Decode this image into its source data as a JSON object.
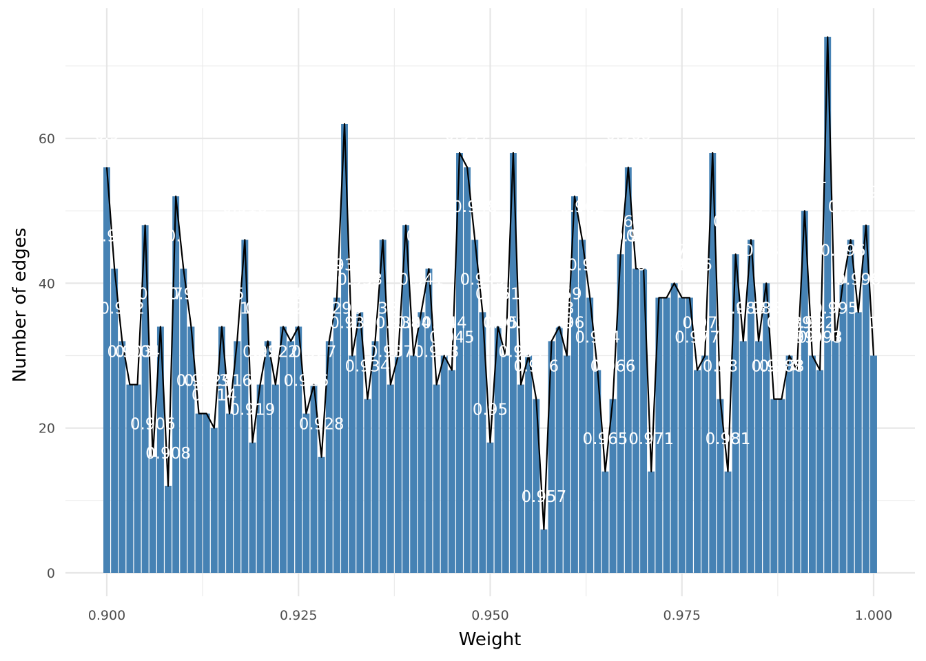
{
  "chart_data": {
    "type": "bar",
    "overlay": "line",
    "xlabel": "Weight",
    "ylabel": "Number of edges",
    "xlim": [
      0.9,
      1.0
    ],
    "ylim": [
      0,
      74
    ],
    "x_ticks": [
      "0.900",
      "0.925",
      "0.950",
      "0.975",
      "1.000"
    ],
    "y_ticks": [
      "0",
      "20",
      "40",
      "60"
    ],
    "grid": true,
    "bar_color": "#4682b4",
    "line_color": "#000000",
    "label_color": "#ffffff",
    "x": [
      0.9,
      0.901,
      0.902,
      0.903,
      0.904,
      0.905,
      0.906,
      0.907,
      0.908,
      0.909,
      0.91,
      0.911,
      0.912,
      0.913,
      0.914,
      0.915,
      0.916,
      0.917,
      0.918,
      0.919,
      0.92,
      0.921,
      0.922,
      0.923,
      0.924,
      0.925,
      0.926,
      0.927,
      0.928,
      0.929,
      0.93,
      0.931,
      0.932,
      0.933,
      0.934,
      0.935,
      0.936,
      0.937,
      0.938,
      0.939,
      0.94,
      0.941,
      0.942,
      0.943,
      0.944,
      0.945,
      0.946,
      0.947,
      0.948,
      0.949,
      0.95,
      0.951,
      0.952,
      0.953,
      0.954,
      0.955,
      0.956,
      0.957,
      0.958,
      0.959,
      0.96,
      0.961,
      0.962,
      0.963,
      0.964,
      0.965,
      0.966,
      0.967,
      0.968,
      0.969,
      0.97,
      0.971,
      0.972,
      0.973,
      0.974,
      0.975,
      0.976,
      0.977,
      0.978,
      0.979,
      0.98,
      0.981,
      0.982,
      0.983,
      0.984,
      0.985,
      0.986,
      0.987,
      0.988,
      0.989,
      0.99,
      0.991,
      0.992,
      0.993,
      0.994,
      0.995,
      0.996,
      0.997,
      0.998,
      0.999,
      1.0
    ],
    "values": [
      56,
      42,
      32,
      26,
      26,
      48,
      16,
      34,
      12,
      52,
      42,
      34,
      22,
      22,
      20,
      34,
      22,
      32,
      46,
      18,
      26,
      32,
      26,
      34,
      32,
      34,
      22,
      26,
      16,
      32,
      38,
      62,
      30,
      36,
      24,
      32,
      46,
      26,
      30,
      48,
      30,
      36,
      42,
      26,
      30,
      28,
      58,
      56,
      46,
      36,
      18,
      34,
      30,
      58,
      26,
      30,
      24,
      6,
      32,
      34,
      30,
      52,
      46,
      38,
      28,
      14,
      24,
      44,
      56,
      42,
      42,
      14,
      38,
      38,
      40,
      38,
      38,
      28,
      30,
      58,
      24,
      14,
      44,
      32,
      46,
      32,
      40,
      24,
      24,
      30,
      28,
      50,
      30,
      28,
      74,
      32,
      40,
      46,
      36,
      48,
      30
    ]
  }
}
